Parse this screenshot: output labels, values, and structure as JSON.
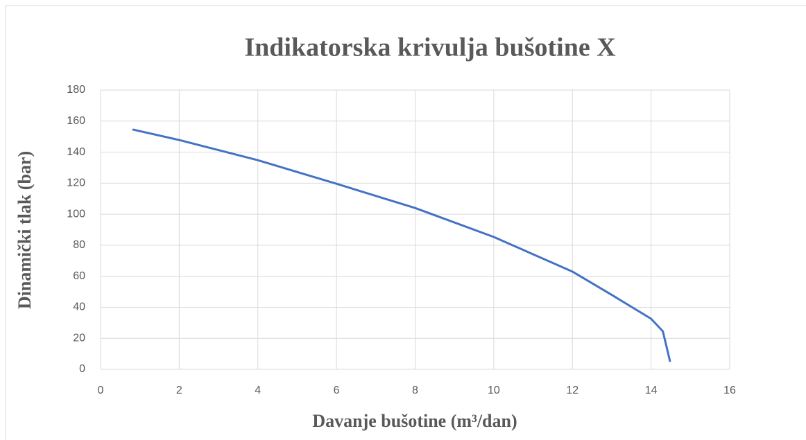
{
  "chart_data": {
    "type": "line",
    "title": "Indikatorska krivulja bušotine X",
    "x_label": "Davanje bušotine (m³/dan)",
    "y_label": "Dinamički tlak (bar)",
    "series": [
      {
        "name": "Dinamički tlak",
        "color": "#4472c4",
        "x": [
          0.83,
          2,
          4,
          6,
          8,
          10,
          12,
          13,
          14,
          14.3,
          14.48
        ],
        "values": [
          154.5,
          147.8,
          134.8,
          119.6,
          104,
          85.3,
          63,
          48,
          32.6,
          24.5,
          5.4
        ]
      }
    ],
    "xlim": [
      0,
      16
    ],
    "xticks": [
      0,
      2,
      4,
      6,
      8,
      10,
      12,
      14,
      16
    ],
    "ylim": [
      0,
      180
    ],
    "yticks": [
      0,
      20,
      40,
      60,
      80,
      100,
      120,
      140,
      160,
      180
    ],
    "grid": true
  }
}
